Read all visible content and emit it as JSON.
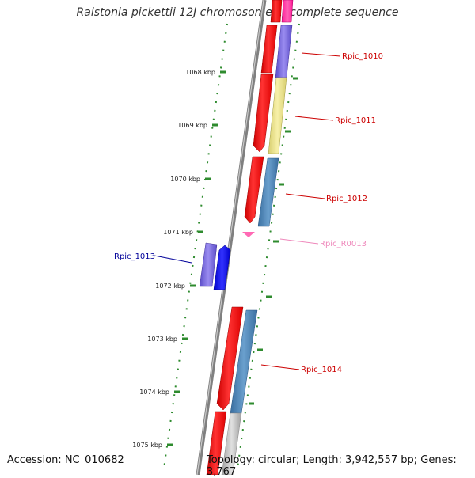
{
  "title": "Ralstonia pickettii 12J chromosome 1, complete sequence",
  "footer": {
    "accession": "Accession: NC_010682",
    "summary": "Topology: circular; Length: 3,942,557 bp; Genes: 3,767"
  },
  "ruler": [
    {
      "label": "1068 kbp"
    },
    {
      "label": "1069 kbp"
    },
    {
      "label": "1070 kbp"
    },
    {
      "label": "1071 kbp"
    },
    {
      "label": "1072 kbp"
    },
    {
      "label": "1073 kbp"
    },
    {
      "label": "1074 kbp"
    },
    {
      "label": "1075 kbp"
    }
  ],
  "gene_labels": [
    {
      "name": "Rpic_1010",
      "color": "#cc0000"
    },
    {
      "name": "Rpic_1011",
      "color": "#cc0000"
    },
    {
      "name": "Rpic_1012",
      "color": "#cc0000"
    },
    {
      "name": "Rpic_R0013",
      "color": "#ee88bb"
    },
    {
      "name": "Rpic_1013",
      "color": "#000099"
    },
    {
      "name": "Rpic_1014",
      "color": "#cc0000"
    }
  ],
  "colors": {
    "cds": "#ff0000",
    "feature_blue": "#4682b4",
    "feature_purple": "#7b68ee",
    "feature_yellow": "#f0e68c",
    "rna": "#ff69b4",
    "tick": "#2e8b2e",
    "backbone": "#808080"
  }
}
